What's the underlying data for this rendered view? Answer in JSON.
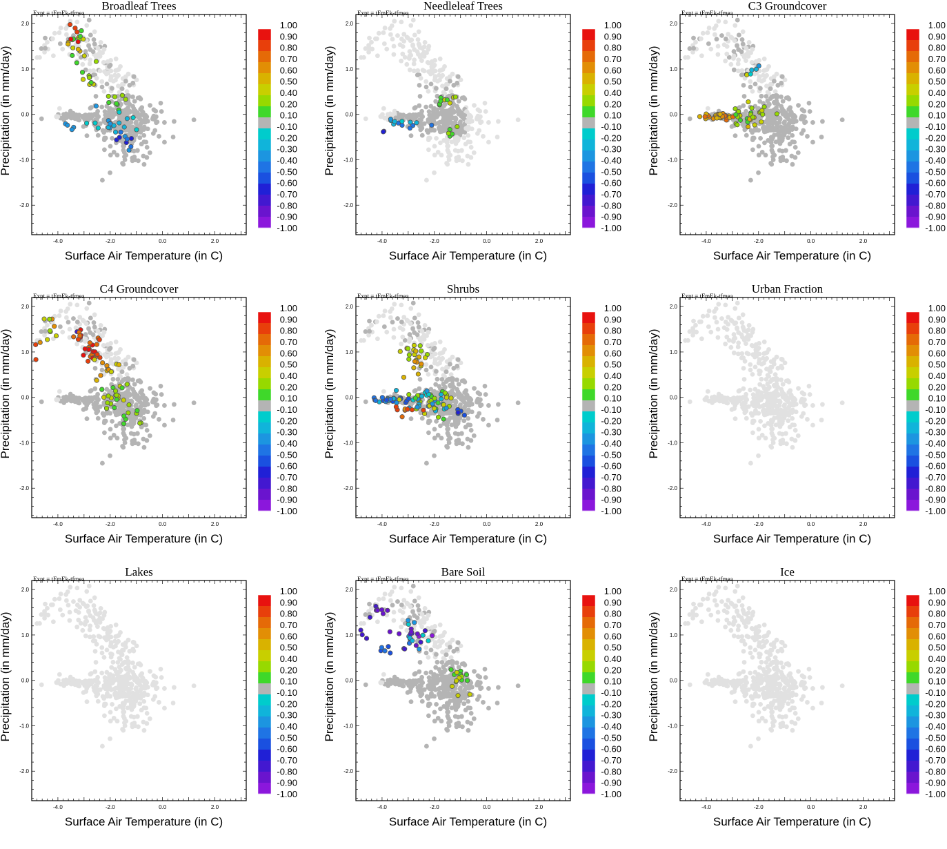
{
  "colors": {
    "background_light": "#e1e1e1",
    "background_dark": "#b4b4b4",
    "colorbar": [
      "#e8120f",
      "#e83f0b",
      "#e56a07",
      "#e28e05",
      "#d9b200",
      "#c8cf00",
      "#97d900",
      "#3fd82a",
      "#b4b4b4",
      "#00cccc",
      "#10b4da",
      "#1c95e0",
      "#1f74e4",
      "#1a50e0",
      "#2020d6",
      "#4318d0",
      "#6a14ce",
      "#8b17dc"
    ]
  },
  "chart_data": [
    {
      "type": "scatter",
      "title": "Broadleaf Trees",
      "experiment": "Expt = tFmEk-tfmea",
      "xlabel": "Surface Air Temperature (in C)",
      "ylabel": "Precipitation (in mm/day)",
      "xlim": [
        -5.0,
        3.2
      ],
      "ylim": [
        -2.65,
        2.2
      ],
      "xticks": [
        "-4.0",
        "-2.0",
        "0.0",
        "2.0"
      ],
      "yticks": [
        "2.0",
        "1.0",
        "0.0",
        "-1.0",
        "-2.0"
      ],
      "colorbar_labels": [
        "1.00",
        "0.90",
        "0.80",
        "0.70",
        "0.60",
        "0.50",
        "0.40",
        "0.20",
        "0.10",
        "-0.10",
        "-0.20",
        "-0.30",
        "-0.40",
        "-0.50",
        "-0.60",
        "-0.70",
        "-0.80",
        "-0.90",
        "-1.00"
      ],
      "background_points": "grey cloud of all grid cells",
      "colored_clusters": [
        {
          "x": -3.3,
          "y": 1.5,
          "xs": 0.3,
          "ys": 0.3,
          "n": 14,
          "levels": [
            4,
            5,
            6,
            7
          ]
        },
        {
          "x": -3.3,
          "y": 1.8,
          "xs": 0.2,
          "ys": 0.15,
          "n": 5,
          "levels": [
            0,
            1,
            2
          ]
        },
        {
          "x": -2.9,
          "y": 0.8,
          "xs": 0.3,
          "ys": 0.3,
          "n": 10,
          "levels": [
            5,
            6,
            7
          ]
        },
        {
          "x": -1.8,
          "y": 0.2,
          "xs": 0.4,
          "ys": 0.15,
          "n": 8,
          "levels": [
            6,
            7
          ]
        },
        {
          "x": -1.9,
          "y": -0.2,
          "xs": 0.8,
          "ys": 0.25,
          "n": 18,
          "levels": [
            9,
            10,
            11
          ]
        },
        {
          "x": -1.3,
          "y": -0.6,
          "xs": 0.5,
          "ys": 0.2,
          "n": 8,
          "levels": [
            11,
            12,
            13,
            14
          ]
        },
        {
          "x": -3.5,
          "y": -0.3,
          "xs": 0.2,
          "ys": 0.1,
          "n": 4,
          "levels": [
            10,
            11
          ]
        }
      ]
    },
    {
      "type": "scatter",
      "title": "Needleleaf Trees",
      "experiment": "Expt = tFmEk-tfmea",
      "xlabel": "Surface Air Temperature (in C)",
      "ylabel": "Precipitation (in mm/day)",
      "xlim": [
        -5.0,
        3.2
      ],
      "ylim": [
        -2.65,
        2.2
      ],
      "xticks": [
        "-4.0",
        "-2.0",
        "0.0",
        "2.0"
      ],
      "yticks": [
        "2.0",
        "1.0",
        "0.0",
        "-1.0",
        "-2.0"
      ],
      "colorbar_labels": [
        "1.00",
        "0.90",
        "0.80",
        "0.70",
        "0.60",
        "0.50",
        "0.40",
        "0.20",
        "0.10",
        "-0.10",
        "-0.20",
        "-0.30",
        "-0.40",
        "-0.50",
        "-0.60",
        "-0.70",
        "-0.80",
        "-0.90",
        "-1.00"
      ],
      "background_points": "mostly light grey",
      "colored_clusters": [
        {
          "x": -1.6,
          "y": 0.3,
          "xs": 0.4,
          "ys": 0.15,
          "n": 9,
          "levels": [
            5,
            6,
            7
          ]
        },
        {
          "x": -3.0,
          "y": -0.2,
          "xs": 0.7,
          "ys": 0.1,
          "n": 12,
          "levels": [
            9,
            10,
            11,
            12
          ]
        },
        {
          "x": -1.3,
          "y": -0.3,
          "xs": 0.3,
          "ys": 0.2,
          "n": 5,
          "levels": [
            6,
            7
          ]
        },
        {
          "x": -4.0,
          "y": -0.4,
          "xs": 0.1,
          "ys": 0.05,
          "n": 2,
          "levels": [
            14,
            15
          ]
        }
      ]
    },
    {
      "type": "scatter",
      "title": "C3 Groundcover",
      "experiment": "Expt = tFmEk-tfmea",
      "xlabel": "Surface Air Temperature (in C)",
      "ylabel": "Precipitation (in mm/day)",
      "xlim": [
        -5.0,
        3.2
      ],
      "ylim": [
        -2.65,
        2.2
      ],
      "xticks": [
        "-4.0",
        "-2.0",
        "0.0",
        "2.0"
      ],
      "yticks": [
        "2.0",
        "1.0",
        "0.0",
        "-1.0",
        "-2.0"
      ],
      "colorbar_labels": [
        "1.00",
        "0.90",
        "0.80",
        "0.70",
        "0.60",
        "0.50",
        "0.40",
        "0.20",
        "0.10",
        "-0.10",
        "-0.20",
        "-0.30",
        "-0.40",
        "-0.50",
        "-0.60",
        "-0.70",
        "-0.80",
        "-0.90",
        "-1.00"
      ],
      "background_points": "grey cloud of all grid cells",
      "colored_clusters": [
        {
          "x": -3.6,
          "y": -0.05,
          "xs": 0.6,
          "ys": 0.06,
          "n": 28,
          "levels": [
            2,
            3,
            4
          ]
        },
        {
          "x": -2.3,
          "y": 0.0,
          "xs": 0.7,
          "ys": 0.2,
          "n": 30,
          "levels": [
            4,
            5,
            6,
            7
          ]
        },
        {
          "x": -2.5,
          "y": 0.8,
          "xs": 0.3,
          "ys": 0.15,
          "n": 3,
          "levels": [
            5,
            9
          ]
        },
        {
          "x": -2.2,
          "y": 1.0,
          "xs": 0.15,
          "ys": 0.1,
          "n": 3,
          "levels": [
            10,
            11
          ]
        }
      ]
    },
    {
      "type": "scatter",
      "title": "C4 Groundcover",
      "experiment": "Expt = tFmEk-tfmea",
      "xlabel": "Surface Air Temperature (in C)",
      "ylabel": "Precipitation (in mm/day)",
      "xlim": [
        -5.0,
        3.2
      ],
      "ylim": [
        -2.65,
        2.2
      ],
      "xticks": [
        "-4.0",
        "-2.0",
        "0.0",
        "2.0"
      ],
      "yticks": [
        "2.0",
        "1.0",
        "0.0",
        "-1.0",
        "-2.0"
      ],
      "colorbar_labels": [
        "1.00",
        "0.90",
        "0.80",
        "0.70",
        "0.60",
        "0.50",
        "0.40",
        "0.20",
        "0.10",
        "-0.10",
        "-0.20",
        "-0.30",
        "-0.40",
        "-0.50",
        "-0.60",
        "-0.70",
        "-0.80",
        "-0.90",
        "-1.00"
      ],
      "background_points": "grey cloud of all grid cells",
      "colored_clusters": [
        {
          "x": -2.7,
          "y": 1.0,
          "xs": 0.3,
          "ys": 0.25,
          "n": 22,
          "levels": [
            0,
            1,
            2
          ]
        },
        {
          "x": -3.2,
          "y": 1.35,
          "xs": 0.25,
          "ys": 0.15,
          "n": 8,
          "levels": [
            0,
            1,
            2,
            15
          ]
        },
        {
          "x": -4.3,
          "y": 1.5,
          "xs": 0.3,
          "ys": 0.25,
          "n": 8,
          "levels": [
            3,
            4,
            5,
            6
          ]
        },
        {
          "x": -2.2,
          "y": 0.6,
          "xs": 0.4,
          "ys": 0.2,
          "n": 10,
          "levels": [
            3,
            4,
            5
          ]
        },
        {
          "x": -1.8,
          "y": 0.0,
          "xs": 0.6,
          "ys": 0.25,
          "n": 20,
          "levels": [
            5,
            6,
            7
          ]
        },
        {
          "x": -1.2,
          "y": -0.5,
          "xs": 0.4,
          "ys": 0.25,
          "n": 8,
          "levels": [
            6,
            7
          ]
        },
        {
          "x": -4.8,
          "y": 1.2,
          "xs": 0.2,
          "ys": 0.25,
          "n": 3,
          "levels": [
            1,
            2,
            3
          ]
        }
      ]
    },
    {
      "type": "scatter",
      "title": "Shrubs",
      "experiment": "Expt = tFmEk-tfmea",
      "xlabel": "Surface Air Temperature (in C)",
      "ylabel": "Precipitation (in mm/day)",
      "xlim": [
        -5.0,
        3.2
      ],
      "ylim": [
        -2.65,
        2.2
      ],
      "xticks": [
        "-4.0",
        "-2.0",
        "0.0",
        "2.0"
      ],
      "yticks": [
        "2.0",
        "1.0",
        "0.0",
        "-1.0",
        "-2.0"
      ],
      "colorbar_labels": [
        "1.00",
        "0.90",
        "0.80",
        "0.70",
        "0.60",
        "0.50",
        "0.40",
        "0.20",
        "0.10",
        "-0.10",
        "-0.20",
        "-0.30",
        "-0.40",
        "-0.50",
        "-0.60",
        "-0.70",
        "-0.80",
        "-0.90",
        "-1.00"
      ],
      "background_points": "grey cloud of all grid cells",
      "colored_clusters": [
        {
          "x": -3.7,
          "y": -0.05,
          "xs": 0.5,
          "ys": 0.05,
          "n": 26,
          "levels": [
            10,
            11,
            12,
            13
          ]
        },
        {
          "x": -2.2,
          "y": -0.1,
          "xs": 0.8,
          "ys": 0.25,
          "n": 50,
          "levels": [
            5,
            6,
            7,
            9,
            10,
            11
          ]
        },
        {
          "x": -2.8,
          "y": 0.9,
          "xs": 0.4,
          "ys": 0.4,
          "n": 22,
          "levels": [
            3,
            4,
            5,
            6
          ]
        },
        {
          "x": -2.9,
          "y": -0.3,
          "xs": 0.5,
          "ys": 0.1,
          "n": 8,
          "levels": [
            1,
            2,
            3
          ]
        },
        {
          "x": -1.0,
          "y": -0.4,
          "xs": 0.25,
          "ys": 0.1,
          "n": 5,
          "levels": [
            13,
            14
          ]
        }
      ]
    },
    {
      "type": "scatter",
      "title": "Urban Fraction",
      "experiment": "Expt = tFmEk-tfmea",
      "xlabel": "Surface Air Temperature (in C)",
      "ylabel": "Precipitation (in mm/day)",
      "xlim": [
        -5.0,
        3.2
      ],
      "ylim": [
        -2.65,
        2.2
      ],
      "xticks": [
        "-4.0",
        "-2.0",
        "0.0",
        "2.0"
      ],
      "yticks": [
        "2.0",
        "1.0",
        "0.0",
        "-1.0",
        "-2.0"
      ],
      "colorbar_labels": [
        "1.00",
        "0.90",
        "0.80",
        "0.70",
        "0.60",
        "0.50",
        "0.40",
        "0.20",
        "0.10",
        "-0.10",
        "-0.20",
        "-0.30",
        "-0.40",
        "-0.50",
        "-0.60",
        "-0.70",
        "-0.80",
        "-0.90",
        "-1.00"
      ],
      "background_points": "light grey only",
      "colored_clusters": []
    },
    {
      "type": "scatter",
      "title": "Lakes",
      "experiment": "Expt = tFmEk-tfmea",
      "xlabel": "Surface Air Temperature (in C)",
      "ylabel": "Precipitation (in mm/day)",
      "xlim": [
        -5.0,
        3.2
      ],
      "ylim": [
        -2.65,
        2.2
      ],
      "xticks": [
        "-4.0",
        "-2.0",
        "0.0",
        "2.0"
      ],
      "yticks": [
        "2.0",
        "1.0",
        "0.0",
        "-1.0",
        "-2.0"
      ],
      "colorbar_labels": [
        "1.00",
        "0.90",
        "0.80",
        "0.70",
        "0.60",
        "0.50",
        "0.40",
        "0.20",
        "0.10",
        "-0.10",
        "-0.20",
        "-0.30",
        "-0.40",
        "-0.50",
        "-0.60",
        "-0.70",
        "-0.80",
        "-0.90",
        "-1.00"
      ],
      "background_points": "light grey only",
      "colored_clusters": []
    },
    {
      "type": "scatter",
      "title": "Bare Soil",
      "experiment": "Expt = tFmEk-tfmea",
      "xlabel": "Surface Air Temperature (in C)",
      "ylabel": "Precipitation (in mm/day)",
      "xlim": [
        -5.0,
        3.2
      ],
      "ylim": [
        -2.65,
        2.2
      ],
      "xticks": [
        "-4.0",
        "-2.0",
        "0.0",
        "2.0"
      ],
      "yticks": [
        "2.0",
        "1.0",
        "0.0",
        "-1.0",
        "-2.0"
      ],
      "colorbar_labels": [
        "1.00",
        "0.90",
        "0.80",
        "0.70",
        "0.60",
        "0.50",
        "0.40",
        "0.20",
        "0.10",
        "-0.10",
        "-0.20",
        "-0.30",
        "-0.40",
        "-0.50",
        "-0.60",
        "-0.70",
        "-0.80",
        "-0.90",
        "-1.00"
      ],
      "background_points": "grey cloud of all grid cells",
      "colored_clusters": [
        {
          "x": -2.8,
          "y": 1.0,
          "xs": 0.5,
          "ys": 0.3,
          "n": 26,
          "levels": [
            9,
            10,
            11,
            12,
            15,
            16,
            17
          ]
        },
        {
          "x": -4.2,
          "y": 1.5,
          "xs": 0.4,
          "ys": 0.2,
          "n": 8,
          "levels": [
            14,
            15,
            16
          ]
        },
        {
          "x": -4.8,
          "y": 1.1,
          "xs": 0.2,
          "ys": 0.25,
          "n": 3,
          "levels": [
            15,
            16
          ]
        },
        {
          "x": -1.0,
          "y": 0.0,
          "xs": 0.35,
          "ys": 0.25,
          "n": 16,
          "levels": [
            5,
            6,
            7
          ]
        },
        {
          "x": -3.8,
          "y": 0.6,
          "xs": 0.3,
          "ys": 0.15,
          "n": 5,
          "levels": [
            12,
            13
          ]
        }
      ]
    },
    {
      "type": "scatter",
      "title": "Ice",
      "experiment": "Expt = tFmEk-tfmea",
      "xlabel": "Surface Air Temperature (in C)",
      "ylabel": "Precipitation (in mm/day)",
      "xlim": [
        -5.0,
        3.2
      ],
      "ylim": [
        -2.65,
        2.2
      ],
      "xticks": [
        "-4.0",
        "-2.0",
        "0.0",
        "2.0"
      ],
      "yticks": [
        "2.0",
        "1.0",
        "0.0",
        "-1.0",
        "-2.0"
      ],
      "colorbar_labels": [
        "1.00",
        "0.90",
        "0.80",
        "0.70",
        "0.60",
        "0.50",
        "0.40",
        "0.20",
        "0.10",
        "-0.10",
        "-0.20",
        "-0.30",
        "-0.40",
        "-0.50",
        "-0.60",
        "-0.70",
        "-0.80",
        "-0.90",
        "-1.00"
      ],
      "background_points": "light grey only",
      "colored_clusters": []
    }
  ]
}
